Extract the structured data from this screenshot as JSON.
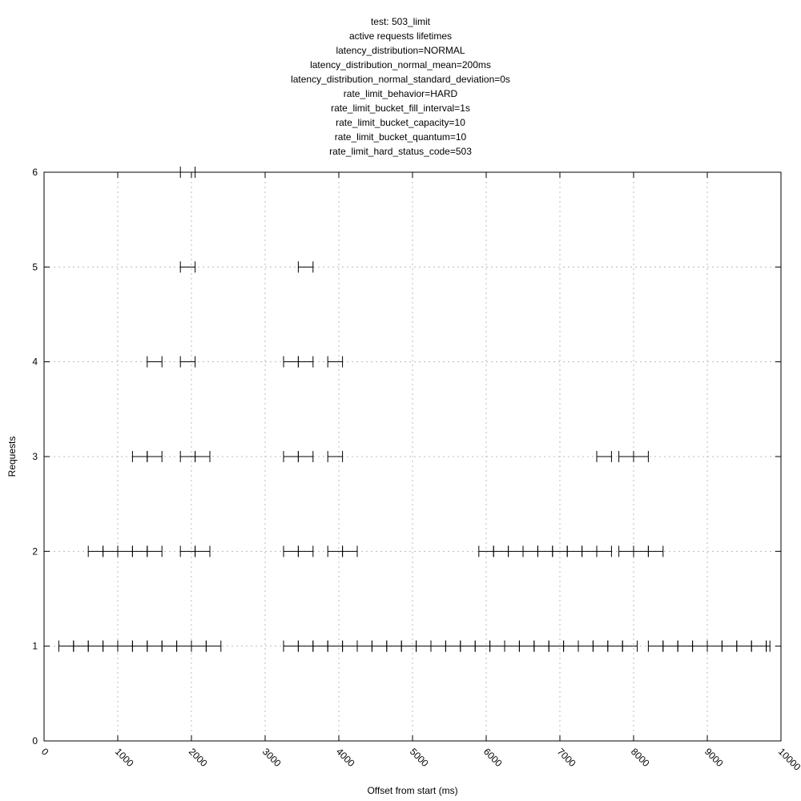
{
  "chart_data": {
    "type": "line",
    "title_lines": [
      "test: 503_limit",
      "active requests lifetimes",
      "latency_distribution=NORMAL",
      "latency_distribution_normal_mean=200ms",
      "latency_distribution_normal_standard_deviation=0s",
      "rate_limit_behavior=HARD",
      "rate_limit_bucket_fill_interval=1s",
      "rate_limit_bucket_capacity=10",
      "rate_limit_bucket_quantum=10",
      "rate_limit_hard_status_code=503"
    ],
    "xlabel": "Offset from start (ms)",
    "ylabel": "Requests",
    "xlim": [
      0,
      10000
    ],
    "ylim": [
      0,
      6
    ],
    "x_ticks": [
      "0",
      "1000",
      "2000",
      "3000",
      "4000",
      "5000",
      "6000",
      "7000",
      "8000",
      "9000",
      "10000"
    ],
    "y_ticks": [
      "0",
      "1",
      "2",
      "3",
      "4",
      "5",
      "6"
    ],
    "grid": true,
    "series": [
      {
        "level": 1,
        "segments": [
          [
            200,
            400
          ],
          [
            400,
            600
          ],
          [
            600,
            800
          ],
          [
            800,
            1000
          ],
          [
            1000,
            1200
          ],
          [
            1200,
            1400
          ],
          [
            1400,
            1600
          ],
          [
            1600,
            1800
          ],
          [
            1800,
            2000
          ],
          [
            2000,
            2200
          ],
          [
            2200,
            2400
          ],
          [
            3250,
            3450
          ],
          [
            3450,
            3650
          ],
          [
            3650,
            3850
          ],
          [
            3850,
            4050
          ],
          [
            4050,
            4250
          ],
          [
            4250,
            4450
          ],
          [
            4450,
            4650
          ],
          [
            4650,
            4850
          ],
          [
            4850,
            5050
          ],
          [
            5050,
            5250
          ],
          [
            5250,
            5450
          ],
          [
            5450,
            5650
          ],
          [
            5650,
            5850
          ],
          [
            5850,
            6050
          ],
          [
            6050,
            6250
          ],
          [
            6250,
            6450
          ],
          [
            6450,
            6650
          ],
          [
            6650,
            6850
          ],
          [
            6850,
            7050
          ],
          [
            7050,
            7250
          ],
          [
            7250,
            7450
          ],
          [
            7450,
            7650
          ],
          [
            7650,
            7850
          ],
          [
            7850,
            8050
          ],
          [
            8200,
            8400
          ],
          [
            8400,
            8600
          ],
          [
            8600,
            8800
          ],
          [
            8800,
            9000
          ],
          [
            9000,
            9200
          ],
          [
            9200,
            9400
          ],
          [
            9400,
            9600
          ],
          [
            9600,
            9800
          ],
          [
            9800,
            9850
          ]
        ]
      },
      {
        "level": 2,
        "segments": [
          [
            600,
            800
          ],
          [
            800,
            1000
          ],
          [
            1000,
            1200
          ],
          [
            1200,
            1400
          ],
          [
            1400,
            1600
          ],
          [
            1850,
            2050
          ],
          [
            2050,
            2250
          ],
          [
            3250,
            3450
          ],
          [
            3450,
            3650
          ],
          [
            3850,
            4050
          ],
          [
            4050,
            4250
          ],
          [
            5900,
            6100
          ],
          [
            6100,
            6300
          ],
          [
            6300,
            6500
          ],
          [
            6500,
            6700
          ],
          [
            6700,
            6900
          ],
          [
            6900,
            7100
          ],
          [
            7100,
            7300
          ],
          [
            7300,
            7500
          ],
          [
            7500,
            7700
          ],
          [
            7800,
            8000
          ],
          [
            8000,
            8200
          ],
          [
            8200,
            8400
          ]
        ]
      },
      {
        "level": 3,
        "segments": [
          [
            1200,
            1400
          ],
          [
            1400,
            1600
          ],
          [
            1850,
            2050
          ],
          [
            2050,
            2250
          ],
          [
            3250,
            3450
          ],
          [
            3450,
            3650
          ],
          [
            3850,
            4050
          ],
          [
            7500,
            7700
          ],
          [
            7800,
            8000
          ],
          [
            8000,
            8200
          ]
        ]
      },
      {
        "level": 4,
        "segments": [
          [
            1400,
            1600
          ],
          [
            1850,
            2050
          ],
          [
            3250,
            3450
          ],
          [
            3450,
            3650
          ],
          [
            3850,
            4050
          ]
        ]
      },
      {
        "level": 5,
        "segments": [
          [
            1850,
            2050
          ],
          [
            3450,
            3650
          ]
        ]
      },
      {
        "level": 6,
        "segments": [
          [
            1850,
            2050
          ]
        ]
      }
    ]
  }
}
